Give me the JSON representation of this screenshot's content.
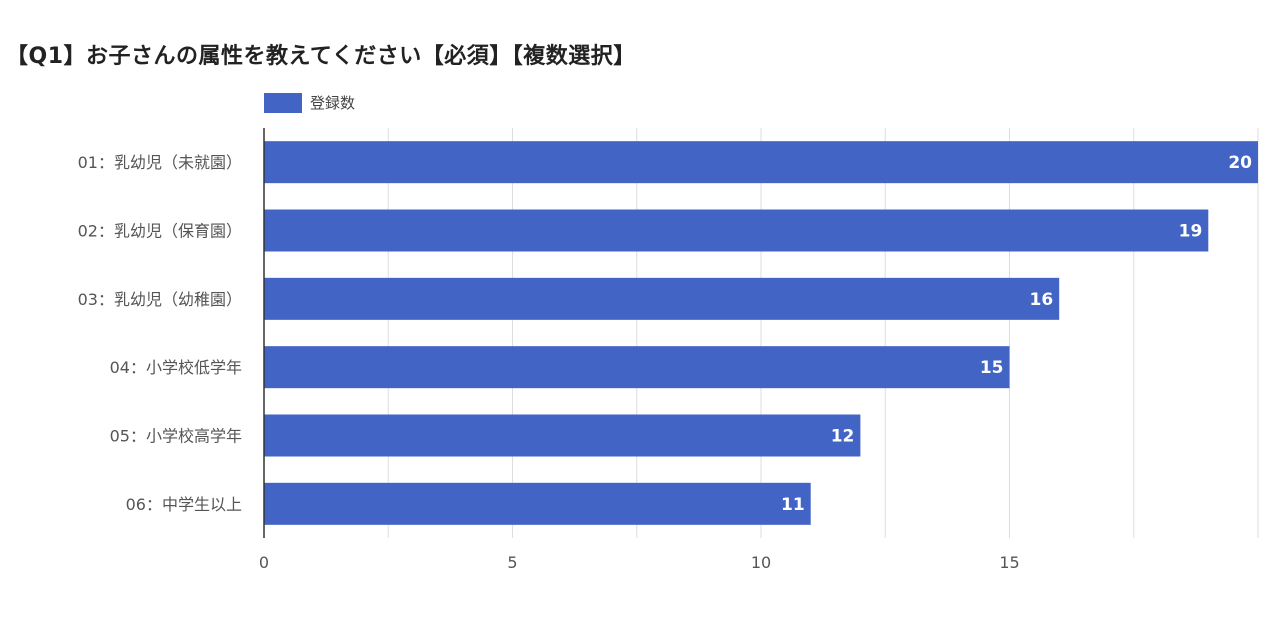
{
  "chart_data": {
    "type": "bar",
    "orientation": "horizontal",
    "title": "【Q1】お子さんの属性を教えてください【必須】【複数選択】",
    "legend": {
      "label": "登録数",
      "position": "top-left"
    },
    "categories": [
      "01：乳幼児（未就園）",
      "02：乳幼児（保育園）",
      "03：乳幼児（幼稚園）",
      "04：小学校低学年",
      "05：小学校高学年",
      "06：中学生以上"
    ],
    "series": [
      {
        "name": "登録数",
        "values": [
          20,
          19,
          16,
          15,
          12,
          11
        ]
      }
    ],
    "xlim": [
      0,
      20
    ],
    "x_ticks": [
      0,
      5,
      10,
      15
    ],
    "x_labels": [
      "0",
      "5",
      "10",
      "15"
    ],
    "grid": true,
    "bar_color": "#4264c4",
    "grid_color": "#dddddd",
    "xlabel": "",
    "ylabel": ""
  }
}
